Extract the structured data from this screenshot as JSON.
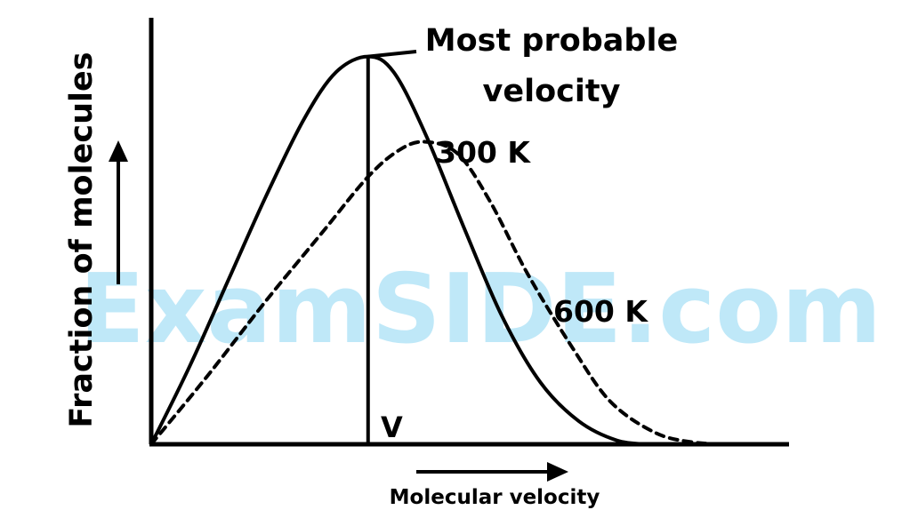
{
  "chart_data": {
    "type": "line",
    "ylabel": "Fraction of molecules",
    "xlabel": "Molecular velocity",
    "annotations": {
      "peak_label_line1": "Most probable",
      "peak_label_line2": "velocity",
      "v_marker": "V"
    },
    "series": [
      {
        "name": "300 K",
        "style": "solid",
        "peak_x": 0.34,
        "peak_y": 1.0,
        "x": [
          0,
          0.06,
          0.12,
          0.18,
          0.24,
          0.29,
          0.34,
          0.38,
          0.43,
          0.49,
          0.55,
          0.61,
          0.67,
          0.73,
          0.78
        ],
        "y": [
          0,
          0.2,
          0.42,
          0.64,
          0.84,
          0.96,
          1.0,
          0.96,
          0.8,
          0.56,
          0.33,
          0.16,
          0.06,
          0.01,
          0
        ]
      },
      {
        "name": "600 K",
        "style": "dashed",
        "peak_x": 0.43,
        "peak_y": 0.78,
        "x": [
          0,
          0.09,
          0.18,
          0.27,
          0.34,
          0.39,
          0.43,
          0.48,
          0.53,
          0.59,
          0.66,
          0.72,
          0.79,
          0.85,
          0.91
        ],
        "y": [
          0,
          0.18,
          0.37,
          0.55,
          0.69,
          0.76,
          0.78,
          0.75,
          0.63,
          0.44,
          0.25,
          0.11,
          0.03,
          0.005,
          0
        ]
      }
    ],
    "xlim": [
      0,
      1
    ],
    "ylim": [
      0,
      1.1
    ],
    "grid": false
  },
  "watermark": "ExamSIDE.com",
  "colors": {
    "ink": "#000000",
    "watermark": "#bfe8f8"
  }
}
